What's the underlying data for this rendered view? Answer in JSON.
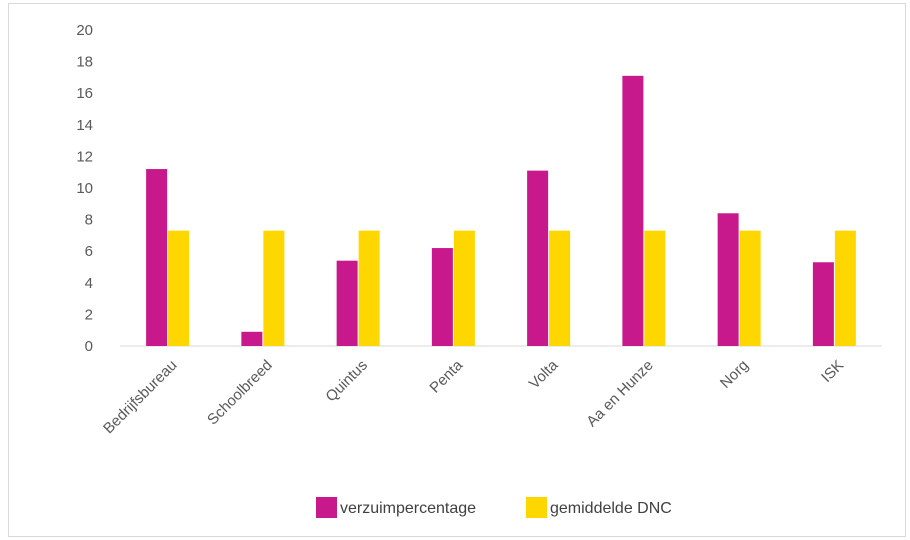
{
  "chart_data": {
    "type": "bar",
    "categories": [
      "Bedrijfsbureau",
      "Schoolbreed",
      "Quintus",
      "Penta",
      "Volta",
      "Aa en Hunze",
      "Norg",
      "ISK"
    ],
    "series": [
      {
        "name": "verzuimpercentage",
        "color": "#c8198c",
        "values": [
          11.2,
          0.9,
          5.4,
          6.2,
          11.1,
          17.1,
          8.4,
          5.3
        ]
      },
      {
        "name": "gemiddelde DNC",
        "color": "#ffd700",
        "values": [
          7.3,
          7.3,
          7.3,
          7.3,
          7.3,
          7.3,
          7.3,
          7.3
        ]
      }
    ],
    "yticks": [
      "0",
      "2",
      "4",
      "6",
      "8",
      "10",
      "12",
      "14",
      "16",
      "18",
      "20"
    ],
    "ylim": [
      0,
      20
    ],
    "grid": false,
    "legend": "bottom"
  }
}
